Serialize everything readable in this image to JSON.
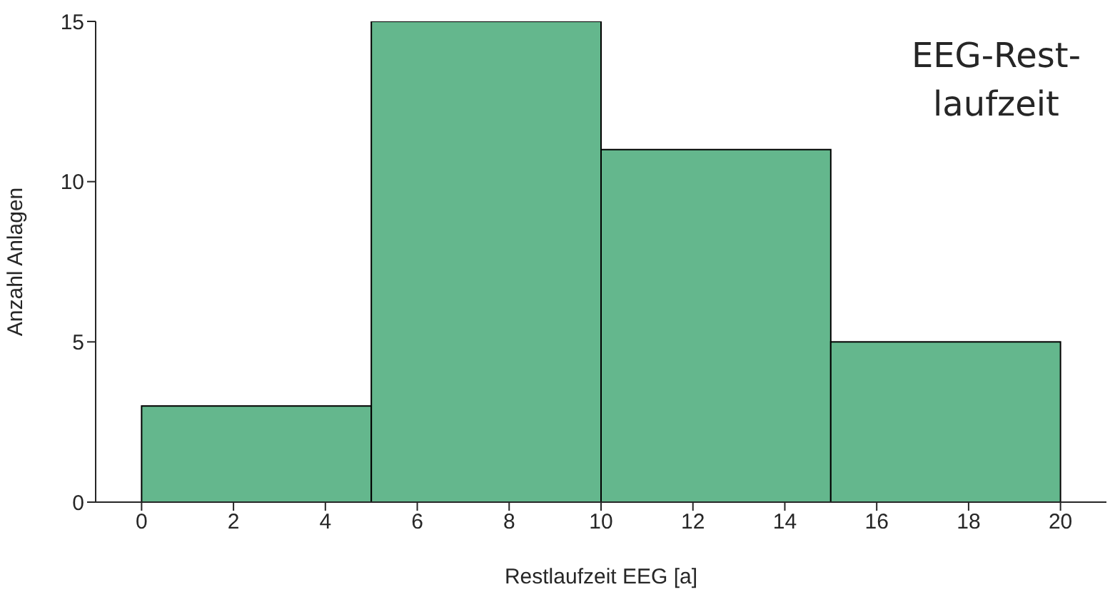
{
  "chart_data": {
    "type": "histogram",
    "xlabel": "Restlaufzeit EEG [a]",
    "ylabel": "Anzahl Anlagen",
    "bins": [
      0,
      5,
      10,
      15,
      20
    ],
    "values": [
      3,
      15,
      11,
      5
    ],
    "color": "#64b78d",
    "xlim": [
      -1,
      21
    ],
    "xticks": [
      0,
      2,
      4,
      6,
      8,
      10,
      12,
      14,
      16,
      18,
      20
    ],
    "ylim": [
      0,
      15
    ],
    "yticks": [
      0,
      5,
      10,
      15
    ],
    "annotations": [
      "EEG-Rest-\nlaufzeit"
    ]
  }
}
